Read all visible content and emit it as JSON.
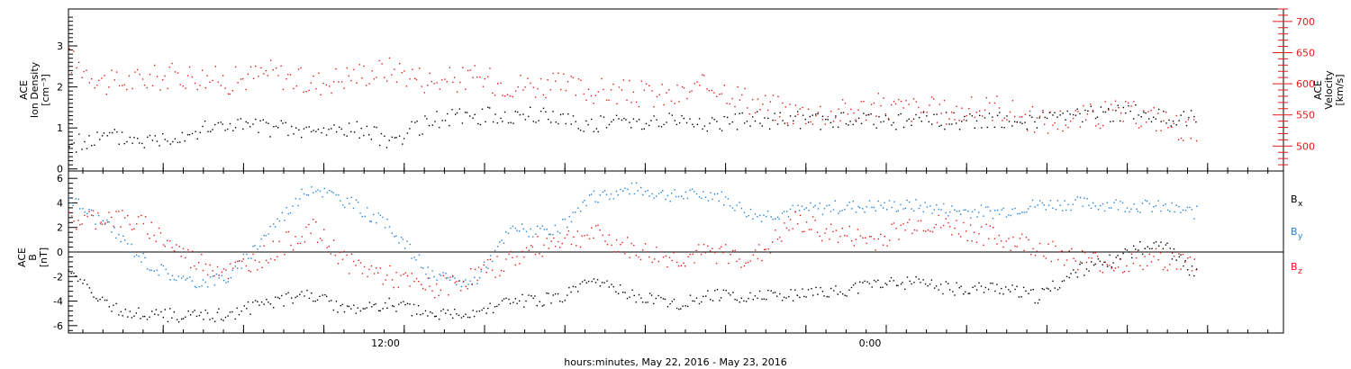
{
  "xlabel": "hours:minutes, May 22, 2016 - May 23, 2016",
  "x_tick_labels": [
    "12:00",
    "0:00"
  ],
  "colors": {
    "black": "#000000",
    "red": "#e31a1c",
    "blue": "#1f83d8"
  },
  "chart_data": [
    {
      "type": "scatter",
      "panel": "top",
      "ylabel": [
        "ACE",
        "Ion Density",
        "[cm⁻³]"
      ],
      "ylabel_right": [
        "ACE",
        "Velocity",
        "[km/s]"
      ],
      "ylim": [
        -0.05,
        3.9
      ],
      "ylim_right": [
        460,
        720
      ],
      "y_ticks": [
        "0",
        "1",
        "2",
        "3"
      ],
      "y_ticks_right": [
        "500",
        "550",
        "600",
        "650",
        "700"
      ],
      "x": [
        "00:00",
        "01:00",
        "02:00",
        "03:00",
        "04:00",
        "05:00",
        "06:00",
        "07:00",
        "08:00",
        "09:00",
        "10:00",
        "11:00",
        "12:00",
        "13:00",
        "14:00",
        "15:00",
        "16:00",
        "17:00",
        "18:00",
        "19:00",
        "20:00",
        "21:00",
        "22:00",
        "23:00",
        "00:00",
        "01:00",
        "02:00",
        "03:00",
        "04:00"
      ],
      "series": [
        {
          "name": "Ion Density",
          "axis": "left",
          "color": "#000000",
          "values": [
            0.6,
            0.8,
            0.7,
            0.9,
            1.1,
            1.0,
            0.9,
            1.0,
            0.7,
            1.2,
            1.3,
            1.3,
            1.3,
            1.1,
            1.2,
            1.2,
            1.1,
            1.2,
            1.2,
            1.2,
            1.2,
            1.2,
            1.2,
            1.2,
            1.2,
            1.3,
            1.4,
            1.3,
            1.2
          ]
        },
        {
          "name": "Velocity",
          "axis": "right",
          "color": "#e31a1c",
          "values": [
            640,
            600,
            610,
            615,
            605,
            620,
            600,
            615,
            625,
            605,
            610,
            600,
            598,
            590,
            585,
            580,
            600,
            570,
            555,
            555,
            565,
            560,
            555,
            565,
            540,
            545,
            555,
            545,
            520
          ]
        }
      ]
    },
    {
      "type": "scatter",
      "panel": "bottom",
      "ylabel": [
        "ACE",
        "B",
        "[nT]"
      ],
      "ylim": [
        -6.6,
        6.6
      ],
      "y_ticks": [
        "6",
        "4",
        "2",
        "0",
        "-2",
        "-4",
        "-6"
      ],
      "x": [
        "00:00",
        "01:00",
        "02:00",
        "03:00",
        "04:00",
        "05:00",
        "06:00",
        "07:00",
        "08:00",
        "09:00",
        "10:00",
        "11:00",
        "12:00",
        "13:00",
        "14:00",
        "15:00",
        "16:00",
        "17:00",
        "18:00",
        "19:00",
        "20:00",
        "21:00",
        "22:00",
        "23:00",
        "00:00",
        "01:00",
        "02:00",
        "03:00",
        "04:00"
      ],
      "series": [
        {
          "name": "B",
          "sub": "x",
          "color": "#000000",
          "values": [
            -1.5,
            -4.5,
            -5,
            -5.2,
            -5,
            -4,
            -3.5,
            -4.8,
            -4.2,
            -5.2,
            -5,
            -4,
            -3.8,
            -2.5,
            -3.5,
            -4.2,
            -3.5,
            -3.6,
            -3.5,
            -3.2,
            -2.5,
            -2.5,
            -3,
            -2.8,
            -3.6,
            -1.5,
            -0.5,
            1,
            -2
          ]
        },
        {
          "name": "B",
          "sub": "y",
          "color": "#1f83d8",
          "values": [
            4.5,
            2,
            -1,
            -2.5,
            -2,
            2,
            5.4,
            4,
            2,
            -2,
            -2.5,
            2,
            1.5,
            4.5,
            5.2,
            4.6,
            4.8,
            3,
            3.4,
            3.7,
            3.8,
            3.8,
            3.4,
            3.3,
            3.9,
            4,
            3.9,
            3.7,
            3.2
          ]
        },
        {
          "name": "B",
          "sub": "z",
          "color": "#e31a1c",
          "values": [
            2.5,
            3,
            2,
            -0.5,
            -1.5,
            0,
            2,
            -1,
            -2,
            -3,
            -2,
            -0.5,
            1,
            1.5,
            0.2,
            -0.5,
            0,
            -0.5,
            2.5,
            1.5,
            1,
            2.5,
            2,
            1.2,
            0.5,
            -0.5,
            -1,
            -0.5,
            -1
          ]
        }
      ]
    }
  ]
}
